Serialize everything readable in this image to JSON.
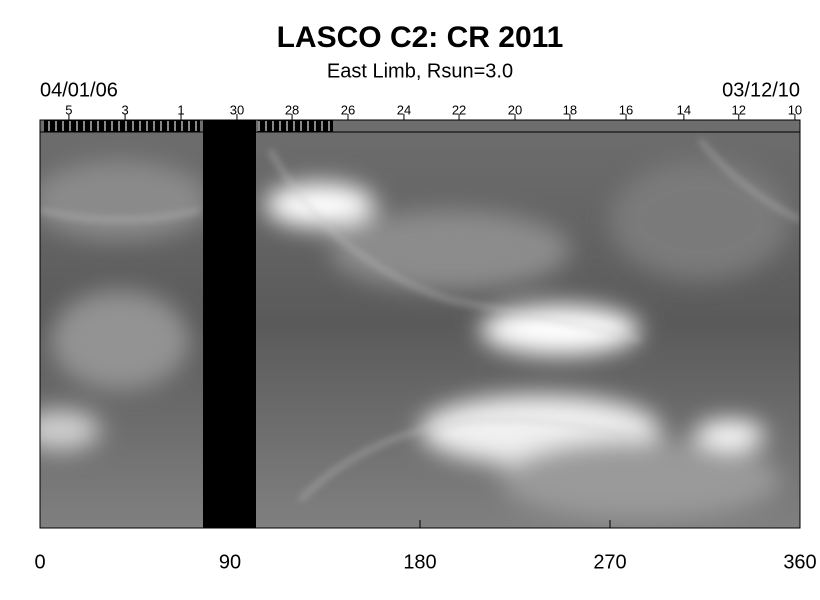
{
  "chart_data": {
    "type": "heatmap",
    "title": "LASCO C2: CR 2011",
    "subtitle": "East Limb, Rsun=3.0",
    "start_date": "04/01/06",
    "end_date": "03/12/10",
    "xlim": [
      0,
      360
    ],
    "xticks": [
      0,
      90,
      180,
      270,
      360
    ],
    "top_ticks": [
      {
        "value": 13.7,
        "label": "5"
      },
      {
        "value": 40.3,
        "label": "3"
      },
      {
        "value": 66.8,
        "label": "1"
      },
      {
        "value": 93.3,
        "label": "30"
      },
      {
        "value": 119.4,
        "label": "28"
      },
      {
        "value": 145.9,
        "label": "26"
      },
      {
        "value": 172.4,
        "label": "24"
      },
      {
        "value": 198.5,
        "label": "22"
      },
      {
        "value": 225,
        "label": "20"
      },
      {
        "value": 251,
        "label": "18"
      },
      {
        "value": 277.6,
        "label": "16"
      },
      {
        "value": 305,
        "label": "14"
      },
      {
        "value": 331,
        "label": "12"
      },
      {
        "value": 357.6,
        "label": "10"
      }
    ]
  }
}
